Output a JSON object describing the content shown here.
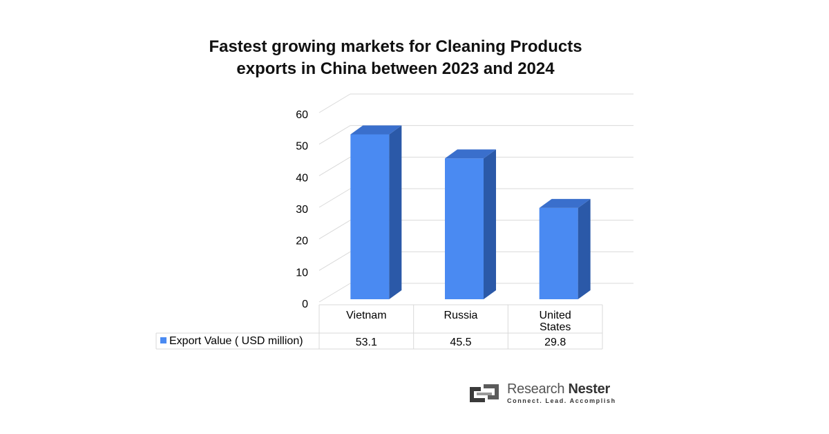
{
  "title_line1": "Fastest growing markets for Cleaning Products",
  "title_line2": "exports in China between 2023 and 2024",
  "chart_data": {
    "type": "bar",
    "title": "Fastest growing markets for Cleaning Products exports in China between 2023 and 2024",
    "categories": [
      "Vietnam",
      "Russia",
      "United States"
    ],
    "series": [
      {
        "name": "Export Value ( USD million)",
        "values": [
          53.1,
          45.5,
          29.8
        ]
      }
    ],
    "yticks": [
      "0",
      "10",
      "20",
      "30",
      "40",
      "50",
      "60"
    ],
    "ylim": [
      0,
      60
    ],
    "grid": true,
    "legend": "data-table",
    "three_d": true,
    "colors": {
      "bar_front": "#4A8AF2",
      "bar_side": "#2B59A8",
      "bar_top": "#3A6FCC",
      "grid": "#d9d9d9"
    }
  },
  "logo": {
    "name_part1": "Research",
    "name_part2": "Nester",
    "tagline": "Connect. Lead. Accomplish"
  }
}
